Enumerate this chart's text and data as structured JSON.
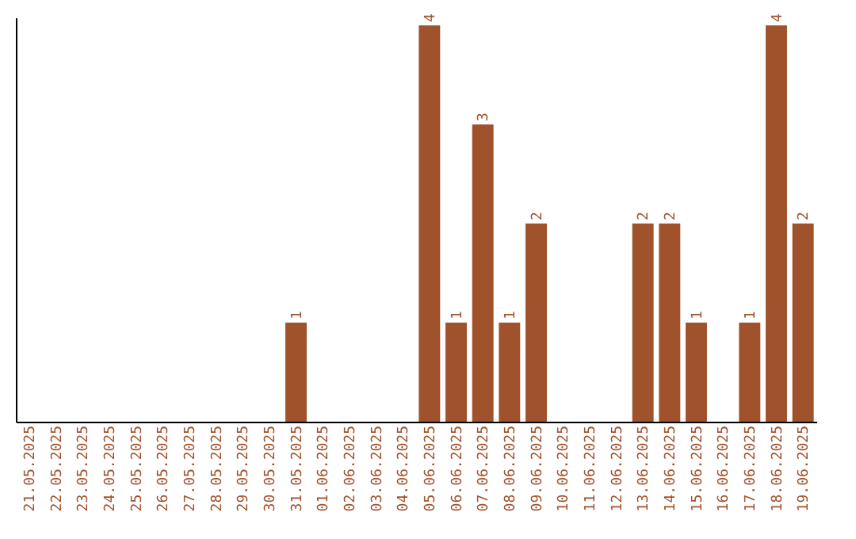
{
  "chart_data": {
    "type": "bar",
    "categories": [
      "21.05.2025",
      "22.05.2025",
      "23.05.2025",
      "24.05.2025",
      "25.05.2025",
      "26.05.2025",
      "27.05.2025",
      "28.05.2025",
      "29.05.2025",
      "30.05.2025",
      "31.05.2025",
      "01.06.2025",
      "02.06.2025",
      "03.06.2025",
      "04.06.2025",
      "05.06.2025",
      "06.06.2025",
      "07.06.2025",
      "08.06.2025",
      "09.06.2025",
      "10.06.2025",
      "11.06.2025",
      "12.06.2025",
      "13.06.2025",
      "14.06.2025",
      "15.06.2025",
      "16.06.2025",
      "17.06.2025",
      "18.06.2025",
      "19.06.2025"
    ],
    "values": [
      0,
      0,
      0,
      0,
      0,
      0,
      0,
      0,
      0,
      0,
      1,
      0,
      0,
      0,
      0,
      4,
      1,
      3,
      1,
      2,
      0,
      0,
      0,
      2,
      2,
      1,
      0,
      1,
      4,
      2
    ],
    "value_labels": [
      null,
      null,
      null,
      null,
      null,
      null,
      null,
      null,
      null,
      null,
      "1",
      null,
      null,
      null,
      null,
      "4",
      "1",
      "3",
      "1",
      "2",
      null,
      null,
      null,
      "2",
      "2",
      "1",
      null,
      "1",
      "4",
      "2"
    ],
    "color": "#a0522d",
    "grid": false,
    "tick_labels": "x"
  }
}
